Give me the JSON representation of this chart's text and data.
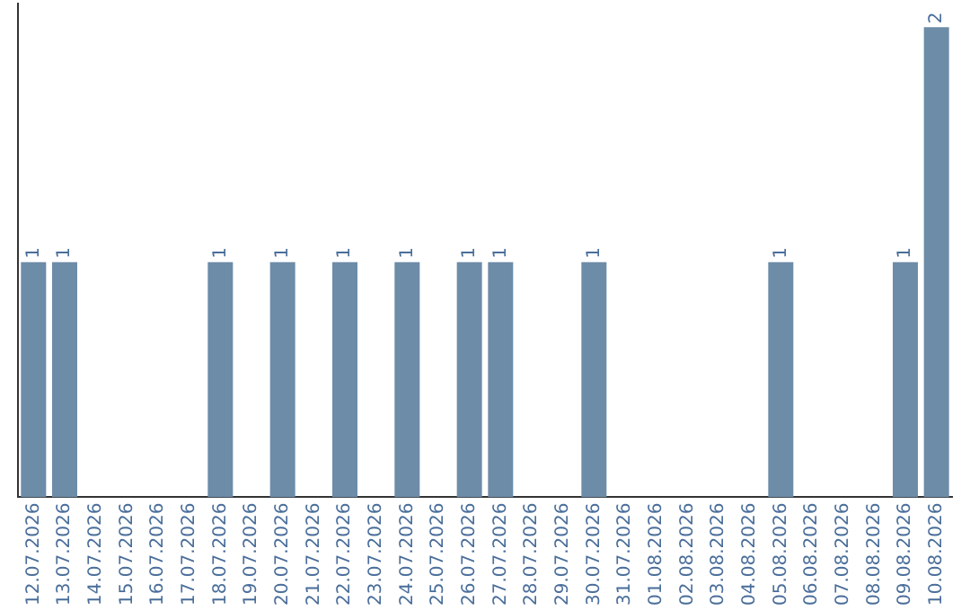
{
  "chart_data": {
    "type": "bar",
    "categories": [
      "12.07.2026",
      "13.07.2026",
      "14.07.2026",
      "15.07.2026",
      "16.07.2026",
      "17.07.2026",
      "18.07.2026",
      "19.07.2026",
      "20.07.2026",
      "21.07.2026",
      "22.07.2026",
      "23.07.2026",
      "24.07.2026",
      "25.07.2026",
      "26.07.2026",
      "27.07.2026",
      "28.07.2026",
      "29.07.2026",
      "30.07.2026",
      "31.07.2026",
      "01.08.2026",
      "02.08.2026",
      "03.08.2026",
      "04.08.2026",
      "05.08.2026",
      "06.08.2026",
      "07.08.2026",
      "08.08.2026",
      "09.08.2026",
      "10.08.2026"
    ],
    "values": [
      1,
      1,
      0,
      0,
      0,
      0,
      1,
      0,
      1,
      0,
      1,
      0,
      1,
      0,
      1,
      1,
      0,
      0,
      1,
      0,
      0,
      0,
      0,
      0,
      1,
      0,
      0,
      0,
      1,
      2
    ],
    "value_labels": [
      "1",
      "1",
      null,
      null,
      null,
      null,
      "1",
      null,
      "1",
      null,
      "1",
      null,
      "1",
      null,
      "1",
      "1",
      null,
      null,
      "1",
      null,
      null,
      null,
      null,
      null,
      "1",
      null,
      null,
      null,
      "1",
      "2"
    ],
    "color": "#6d8ca8",
    "ylim": [
      0,
      2.1
    ],
    "tick_labels": "x",
    "grid": false,
    "legend": false
  }
}
